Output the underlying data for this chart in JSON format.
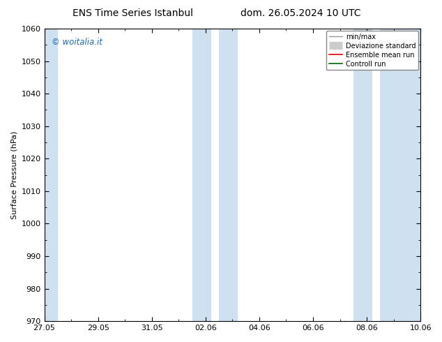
{
  "title_left": "ENS Time Series Istanbul",
  "title_right": "dom. 26.05.2024 10 UTC",
  "ylabel": "Surface Pressure (hPa)",
  "ylim": [
    970,
    1060
  ],
  "yticks": [
    970,
    980,
    990,
    1000,
    1010,
    1020,
    1030,
    1040,
    1050,
    1060
  ],
  "xlim": [
    0,
    14
  ],
  "xtick_labels": [
    "27.05",
    "29.05",
    "31.05",
    "02.06",
    "04.06",
    "06.06",
    "08.06",
    "10.06"
  ],
  "xtick_days_offset": [
    0,
    2,
    4,
    6,
    8,
    10,
    12,
    14
  ],
  "blue_bands": [
    {
      "start": -0.1,
      "end": 0.5
    },
    {
      "start": 5.5,
      "end": 6.2
    },
    {
      "start": 6.5,
      "end": 7.2
    },
    {
      "start": 11.5,
      "end": 12.2
    },
    {
      "start": 12.5,
      "end": 14.1
    }
  ],
  "band_color": "#cfe0f0",
  "watermark": "© woitalia.it",
  "watermark_color": "#1a6aad",
  "legend_items": [
    {
      "label": "min/max",
      "color": "#999999",
      "lw": 1.0,
      "style": "-"
    },
    {
      "label": "Deviazione standard",
      "color": "#cccccc",
      "lw": 8,
      "style": "-"
    },
    {
      "label": "Ensemble mean run",
      "color": "#dd0000",
      "lw": 1.2,
      "style": "-"
    },
    {
      "label": "Controll run",
      "color": "#006600",
      "lw": 1.2,
      "style": "-"
    }
  ],
  "bg_color": "#ffffff",
  "title_fontsize": 10,
  "ylabel_fontsize": 8,
  "tick_fontsize": 8,
  "legend_fontsize": 7
}
